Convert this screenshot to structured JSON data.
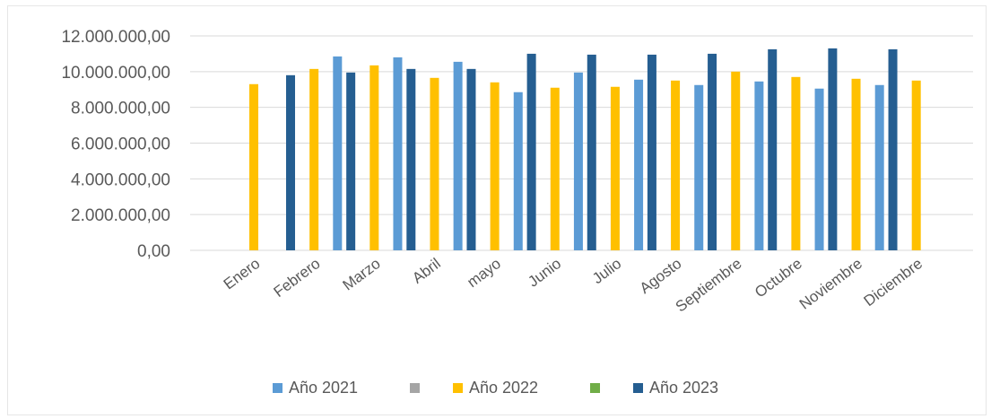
{
  "chart_data": {
    "type": "bar",
    "title": "",
    "xlabel": "",
    "ylabel": "",
    "ylim": [
      0,
      12000000
    ],
    "y_ticks": [
      "0,00",
      "2.000.000,00",
      "4.000.000,00",
      "6.000.000,00",
      "8.000.000,00",
      "10.000.000,00",
      "12.000.000,00"
    ],
    "grid": "horizontal",
    "legend_position": "bottom",
    "categories": [
      "Enero",
      "Febrero",
      "Marzo",
      "Abril",
      "mayo",
      "Junio",
      "Julio",
      "Agosto",
      "Septiembre",
      "Octubre",
      "Noviembre",
      "Diciembre"
    ],
    "series": [
      {
        "name": "Año 2021",
        "color": "#5b9bd5",
        "values": [
          null,
          null,
          10850000,
          10800000,
          10550000,
          8850000,
          9950000,
          9550000,
          9250000,
          9450000,
          9050000,
          9250000
        ]
      },
      {
        "name": "",
        "color": "#a5a5a5",
        "values": [
          null,
          null,
          null,
          null,
          null,
          null,
          null,
          null,
          null,
          null,
          null,
          null
        ]
      },
      {
        "name": "Año 2022",
        "color": "#ffc000",
        "values": [
          9300000,
          10150000,
          10350000,
          9650000,
          9400000,
          9100000,
          9150000,
          9500000,
          10000000,
          9700000,
          9600000,
          9500000
        ]
      },
      {
        "name": "",
        "color": "#70ad47",
        "values": [
          null,
          null,
          null,
          null,
          null,
          null,
          null,
          null,
          null,
          null,
          null,
          null
        ]
      },
      {
        "name": "Año 2023",
        "color": "#255e91",
        "values": [
          9800000,
          9950000,
          10150000,
          10150000,
          11000000,
          10950000,
          10950000,
          11000000,
          11250000,
          11300000,
          11250000,
          null
        ]
      }
    ]
  }
}
